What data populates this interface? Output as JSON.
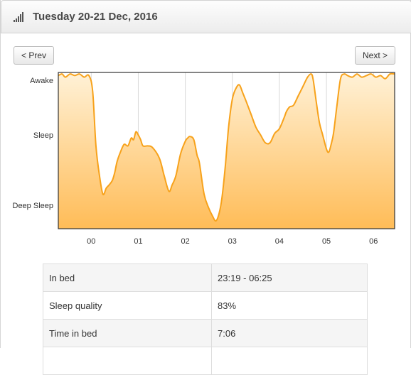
{
  "header": {
    "title": "Tuesday 20-21 Dec, 2016",
    "icon": "signal-bars-icon"
  },
  "nav": {
    "prev_label": "< Prev",
    "next_label": "Next >"
  },
  "chart_data": {
    "type": "area",
    "title": "",
    "xlabel": "",
    "ylabel": "",
    "x_unit": "hours from midnight",
    "x_range": [
      -0.7,
      6.45
    ],
    "x_ticks": [
      {
        "value": 0,
        "label": "00"
      },
      {
        "value": 1,
        "label": "01"
      },
      {
        "value": 2,
        "label": "02"
      },
      {
        "value": 3,
        "label": "03"
      },
      {
        "value": 4,
        "label": "04"
      },
      {
        "value": 5,
        "label": "05"
      },
      {
        "value": 6,
        "label": "06"
      }
    ],
    "y_range": [
      0,
      100
    ],
    "y_ticks": [
      {
        "value": 95,
        "label": "Awake"
      },
      {
        "value": 60,
        "label": "Sleep"
      },
      {
        "value": 15,
        "label": "Deep Sleep"
      }
    ],
    "grid": "vertical",
    "legend": "none",
    "colors": {
      "line": "#f7a21b",
      "fill_top": "#fff1d6",
      "fill_bottom": "#ffbc57"
    },
    "series": [
      {
        "x": [
          -0.7,
          -0.62,
          -0.55,
          -0.45,
          -0.35,
          -0.25,
          -0.15,
          -0.05,
          0.03,
          0.1,
          0.18,
          0.25,
          0.32,
          0.38,
          0.45,
          0.5,
          0.55,
          0.62,
          0.7,
          0.78,
          0.85,
          0.9,
          0.95,
          1.0,
          1.05,
          1.1,
          1.2,
          1.3,
          1.45,
          1.55,
          1.65,
          1.72,
          1.8,
          1.9,
          2.0,
          2.05,
          2.1,
          2.18,
          2.25,
          2.3,
          2.4,
          2.5,
          2.58,
          2.65,
          2.72,
          2.78,
          2.85,
          2.92,
          3.0,
          3.08,
          3.15,
          3.22,
          3.3,
          3.4,
          3.5,
          3.6,
          3.7,
          3.8,
          3.9,
          4.0,
          4.1,
          4.15,
          4.22,
          4.3,
          4.4,
          4.5,
          4.6,
          4.68,
          4.72,
          4.78,
          4.85,
          4.92,
          5.0,
          5.05,
          5.1,
          5.15,
          5.22,
          5.3,
          5.38,
          5.45,
          5.55,
          5.65,
          5.75,
          5.85,
          5.95,
          6.05,
          6.15,
          6.25,
          6.35,
          6.45
        ],
        "y": [
          98,
          99,
          97,
          99,
          98,
          99,
          97,
          98,
          88,
          53,
          33,
          22,
          26,
          28,
          31,
          36,
          43,
          49,
          54,
          53,
          58,
          57,
          62,
          60,
          57,
          53,
          53,
          52,
          45,
          34,
          24,
          28,
          34,
          48,
          56,
          58,
          59,
          57,
          47,
          42,
          22,
          13,
          8,
          5,
          10,
          20,
          40,
          65,
          83,
          90,
          92,
          87,
          81,
          73,
          65,
          60,
          55,
          55,
          61,
          64,
          71,
          75,
          78,
          79,
          85,
          91,
          97,
          99,
          95,
          82,
          68,
          60,
          51,
          49,
          54,
          61,
          78,
          96,
          99,
          98,
          97,
          99,
          97,
          98,
          99,
          97,
          98,
          96,
          99,
          99
        ]
      }
    ]
  },
  "stats": {
    "rows": [
      {
        "label": "In bed",
        "value": "23:19 - 06:25"
      },
      {
        "label": "Sleep quality",
        "value": "83%"
      },
      {
        "label": "Time in bed",
        "value": "7:06"
      },
      {
        "label": "",
        "value": ""
      }
    ]
  }
}
